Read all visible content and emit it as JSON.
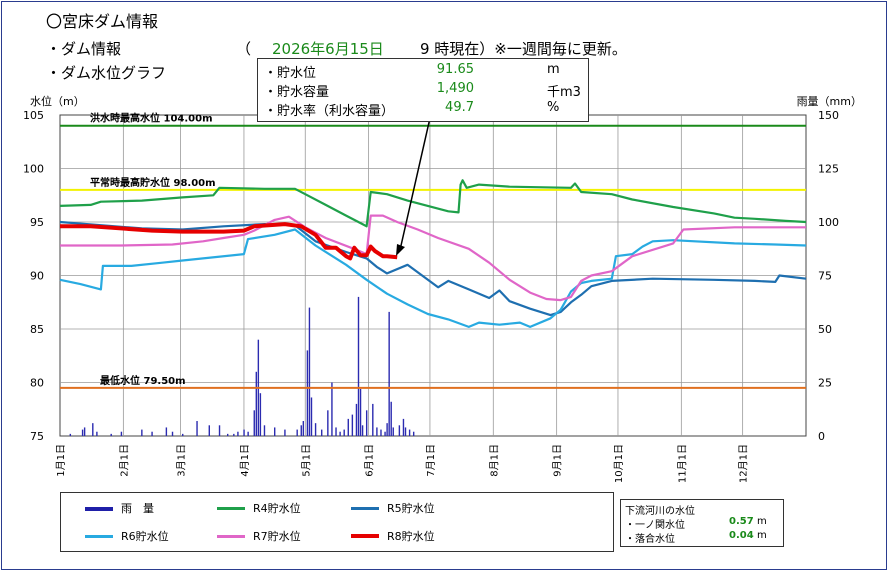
{
  "header": {
    "title": "〇宮床ダム情報",
    "dam_info_label": "・ダム情報",
    "paren_open": "（",
    "date": "2026年6月15日",
    "time_note": "9 時現在）※一週間毎に更新。",
    "graph_label": "・ダム水位グラフ"
  },
  "info": {
    "rows": [
      {
        "label": "・貯水位",
        "value": "91.65",
        "unit": "m"
      },
      {
        "label": "・貯水容量",
        "value": "1,490",
        "unit": "千m3"
      },
      {
        "label": "・貯水率（利水容量）",
        "value": "49.7",
        "unit": "%"
      }
    ]
  },
  "legend": {
    "items": [
      {
        "label": "雨　量",
        "color": "#1f1fa8"
      },
      {
        "label": "R4貯水位",
        "color": "#1fa04a"
      },
      {
        "label": "R5貯水位",
        "color": "#1e6fb0"
      },
      {
        "label": "R6貯水位",
        "color": "#28aae1"
      },
      {
        "label": "R7貯水位",
        "color": "#e066c8"
      },
      {
        "label": "R8貯水位",
        "color": "#e60000"
      }
    ]
  },
  "river": {
    "title": "下流河川の水位",
    "rows": [
      {
        "label": "・一ノ関水位",
        "value": "0.57",
        "unit": "m"
      },
      {
        "label": "・落合水位",
        "value": "0.04",
        "unit": "m"
      }
    ]
  },
  "chart_data": {
    "type": "line",
    "ylabel": "水位（m）",
    "y2label": "雨量（mm）",
    "ylim": [
      75,
      105
    ],
    "y2lim": [
      0,
      150
    ],
    "yticks": [
      "105",
      "100",
      "95",
      "90",
      "85",
      "80",
      "75"
    ],
    "y2ticks": [
      "150",
      "125",
      "100",
      "75",
      "50",
      "25",
      "0"
    ],
    "xlim": [
      0,
      365
    ],
    "xticks": [
      {
        "label": "1月1日",
        "day": 0
      },
      {
        "label": "2月1日",
        "day": 31
      },
      {
        "label": "3月1日",
        "day": 59
      },
      {
        "label": "4月1日",
        "day": 90
      },
      {
        "label": "5月1日",
        "day": 120
      },
      {
        "label": "6月1日",
        "day": 151
      },
      {
        "label": "7月1日",
        "day": 181
      },
      {
        "label": "8月1日",
        "day": 212
      },
      {
        "label": "9月1日",
        "day": 243
      },
      {
        "label": "10月1日",
        "day": 273
      },
      {
        "label": "11月1日",
        "day": 304
      },
      {
        "label": "12月1日",
        "day": 334
      }
    ],
    "reference_lines": [
      {
        "label": "洪水時最高水位 104.00m",
        "value": 104.0,
        "color": "#1a8a1a"
      },
      {
        "label": "平常時最高貯水位 98.00m",
        "value": 98.0,
        "color": "#f2f200"
      },
      {
        "label": "最低水位 79.50m",
        "value": 79.5,
        "color": "#e07020"
      }
    ],
    "series": [
      {
        "name": "R4貯水位",
        "color": "#1fa04a",
        "width": 2.2,
        "points": [
          [
            0,
            96.5
          ],
          [
            15,
            96.6
          ],
          [
            20,
            96.9
          ],
          [
            40,
            97.0
          ],
          [
            60,
            97.3
          ],
          [
            75,
            97.5
          ],
          [
            78,
            98.2
          ],
          [
            100,
            98.1
          ],
          [
            115,
            98.1
          ],
          [
            120,
            97.6
          ],
          [
            130,
            96.6
          ],
          [
            140,
            95.6
          ],
          [
            148,
            94.8
          ],
          [
            150,
            94.6
          ],
          [
            152,
            97.8
          ],
          [
            160,
            97.6
          ],
          [
            170,
            97.0
          ],
          [
            180,
            96.5
          ],
          [
            190,
            96.0
          ],
          [
            195,
            95.9
          ],
          [
            196,
            98.5
          ],
          [
            197,
            98.9
          ],
          [
            199,
            98.2
          ],
          [
            205,
            98.5
          ],
          [
            220,
            98.3
          ],
          [
            250,
            98.2
          ],
          [
            252,
            98.6
          ],
          [
            255,
            97.8
          ],
          [
            270,
            97.6
          ],
          [
            280,
            97.1
          ],
          [
            300,
            96.4
          ],
          [
            320,
            95.8
          ],
          [
            330,
            95.4
          ],
          [
            340,
            95.3
          ],
          [
            355,
            95.1
          ],
          [
            365,
            95.0
          ]
        ]
      },
      {
        "name": "R5貯水位",
        "color": "#1e6fb0",
        "width": 2.2,
        "points": [
          [
            0,
            95.0
          ],
          [
            20,
            94.7
          ],
          [
            40,
            94.4
          ],
          [
            60,
            94.3
          ],
          [
            80,
            94.6
          ],
          [
            100,
            94.8
          ],
          [
            115,
            94.7
          ],
          [
            125,
            93.2
          ],
          [
            140,
            92.2
          ],
          [
            150,
            91.6
          ],
          [
            155,
            90.8
          ],
          [
            160,
            90.2
          ],
          [
            170,
            91.0
          ],
          [
            180,
            89.6
          ],
          [
            185,
            88.9
          ],
          [
            190,
            89.5
          ],
          [
            200,
            88.7
          ],
          [
            210,
            87.9
          ],
          [
            215,
            88.6
          ],
          [
            220,
            87.6
          ],
          [
            230,
            86.9
          ],
          [
            240,
            86.3
          ],
          [
            245,
            86.6
          ],
          [
            250,
            87.5
          ],
          [
            255,
            88.2
          ],
          [
            260,
            89.0
          ],
          [
            270,
            89.5
          ],
          [
            290,
            89.7
          ],
          [
            320,
            89.6
          ],
          [
            340,
            89.5
          ],
          [
            350,
            89.4
          ],
          [
            352,
            90.0
          ],
          [
            365,
            89.7
          ]
        ]
      },
      {
        "name": "R6貯水位",
        "color": "#28aae1",
        "width": 2.2,
        "points": [
          [
            0,
            89.6
          ],
          [
            10,
            89.2
          ],
          [
            20,
            88.7
          ],
          [
            21,
            90.9
          ],
          [
            35,
            90.9
          ],
          [
            50,
            91.2
          ],
          [
            60,
            91.4
          ],
          [
            70,
            91.6
          ],
          [
            90,
            92.0
          ],
          [
            92,
            93.4
          ],
          [
            105,
            93.8
          ],
          [
            115,
            94.3
          ],
          [
            125,
            92.8
          ],
          [
            140,
            91.0
          ],
          [
            150,
            89.6
          ],
          [
            160,
            88.3
          ],
          [
            170,
            87.3
          ],
          [
            180,
            86.4
          ],
          [
            190,
            85.9
          ],
          [
            200,
            85.2
          ],
          [
            205,
            85.6
          ],
          [
            215,
            85.4
          ],
          [
            225,
            85.6
          ],
          [
            230,
            85.2
          ],
          [
            240,
            86.0
          ],
          [
            245,
            86.8
          ],
          [
            250,
            88.5
          ],
          [
            255,
            89.3
          ],
          [
            260,
            89.5
          ],
          [
            270,
            89.7
          ],
          [
            272,
            91.8
          ],
          [
            280,
            92.0
          ],
          [
            285,
            92.7
          ],
          [
            290,
            93.2
          ],
          [
            300,
            93.3
          ],
          [
            330,
            93.0
          ],
          [
            350,
            92.9
          ],
          [
            365,
            92.8
          ]
        ]
      },
      {
        "name": "R7貯水位",
        "color": "#e066c8",
        "width": 2.2,
        "points": [
          [
            0,
            92.8
          ],
          [
            30,
            92.8
          ],
          [
            55,
            92.9
          ],
          [
            70,
            93.2
          ],
          [
            80,
            93.5
          ],
          [
            90,
            93.8
          ],
          [
            95,
            94.2
          ],
          [
            105,
            95.2
          ],
          [
            112,
            95.5
          ],
          [
            120,
            94.5
          ],
          [
            130,
            93.5
          ],
          [
            145,
            92.4
          ],
          [
            150,
            92.0
          ],
          [
            152,
            95.6
          ],
          [
            158,
            95.6
          ],
          [
            165,
            95.0
          ],
          [
            175,
            94.3
          ],
          [
            185,
            93.5
          ],
          [
            200,
            92.5
          ],
          [
            210,
            91.2
          ],
          [
            220,
            89.6
          ],
          [
            230,
            88.4
          ],
          [
            238,
            87.8
          ],
          [
            245,
            87.7
          ],
          [
            250,
            88.0
          ],
          [
            255,
            89.5
          ],
          [
            260,
            90.0
          ],
          [
            270,
            90.4
          ],
          [
            280,
            91.8
          ],
          [
            300,
            93.0
          ],
          [
            305,
            94.3
          ],
          [
            330,
            94.5
          ],
          [
            365,
            94.5
          ]
        ]
      },
      {
        "name": "R8貯水位",
        "color": "#e60000",
        "width": 4,
        "points": [
          [
            0,
            94.6
          ],
          [
            15,
            94.6
          ],
          [
            30,
            94.4
          ],
          [
            45,
            94.2
          ],
          [
            60,
            94.1
          ],
          [
            80,
            94.1
          ],
          [
            90,
            94.2
          ],
          [
            95,
            94.6
          ],
          [
            110,
            94.8
          ],
          [
            118,
            94.6
          ],
          [
            125,
            93.8
          ],
          [
            130,
            92.6
          ],
          [
            135,
            92.6
          ],
          [
            140,
            91.8
          ],
          [
            142,
            91.6
          ],
          [
            144,
            92.6
          ],
          [
            147,
            91.9
          ],
          [
            150,
            91.9
          ],
          [
            152,
            92.7
          ],
          [
            154,
            92.3
          ],
          [
            158,
            91.8
          ],
          [
            160,
            91.8
          ],
          [
            165,
            91.7
          ]
        ]
      }
    ],
    "rain": [
      [
        5,
        1
      ],
      [
        11,
        3
      ],
      [
        12,
        4
      ],
      [
        16,
        6
      ],
      [
        18,
        2
      ],
      [
        25,
        1
      ],
      [
        30,
        2
      ],
      [
        40,
        3
      ],
      [
        45,
        2
      ],
      [
        52,
        4
      ],
      [
        55,
        2
      ],
      [
        60,
        1
      ],
      [
        67,
        7
      ],
      [
        73,
        5
      ],
      [
        78,
        5
      ],
      [
        82,
        1
      ],
      [
        85,
        1
      ],
      [
        87,
        2
      ],
      [
        90,
        3
      ],
      [
        92,
        2
      ],
      [
        95,
        12
      ],
      [
        96,
        30
      ],
      [
        97,
        45
      ],
      [
        98,
        20
      ],
      [
        100,
        5
      ],
      [
        105,
        4
      ],
      [
        110,
        3
      ],
      [
        116,
        3
      ],
      [
        118,
        5
      ],
      [
        119,
        7
      ],
      [
        121,
        40
      ],
      [
        122,
        60
      ],
      [
        123,
        18
      ],
      [
        125,
        6
      ],
      [
        128,
        3
      ],
      [
        131,
        12
      ],
      [
        133,
        25
      ],
      [
        135,
        4
      ],
      [
        137,
        2
      ],
      [
        139,
        3
      ],
      [
        141,
        8
      ],
      [
        143,
        10
      ],
      [
        145,
        15
      ],
      [
        146,
        65
      ],
      [
        147,
        22
      ],
      [
        148,
        5
      ],
      [
        150,
        12
      ],
      [
        153,
        15
      ],
      [
        155,
        4
      ],
      [
        157,
        3
      ],
      [
        159,
        2
      ],
      [
        160,
        6
      ],
      [
        161,
        58
      ],
      [
        162,
        16
      ],
      [
        163,
        4
      ],
      [
        166,
        5
      ],
      [
        168,
        8
      ],
      [
        169,
        4
      ],
      [
        171,
        3
      ],
      [
        173,
        2
      ]
    ]
  }
}
